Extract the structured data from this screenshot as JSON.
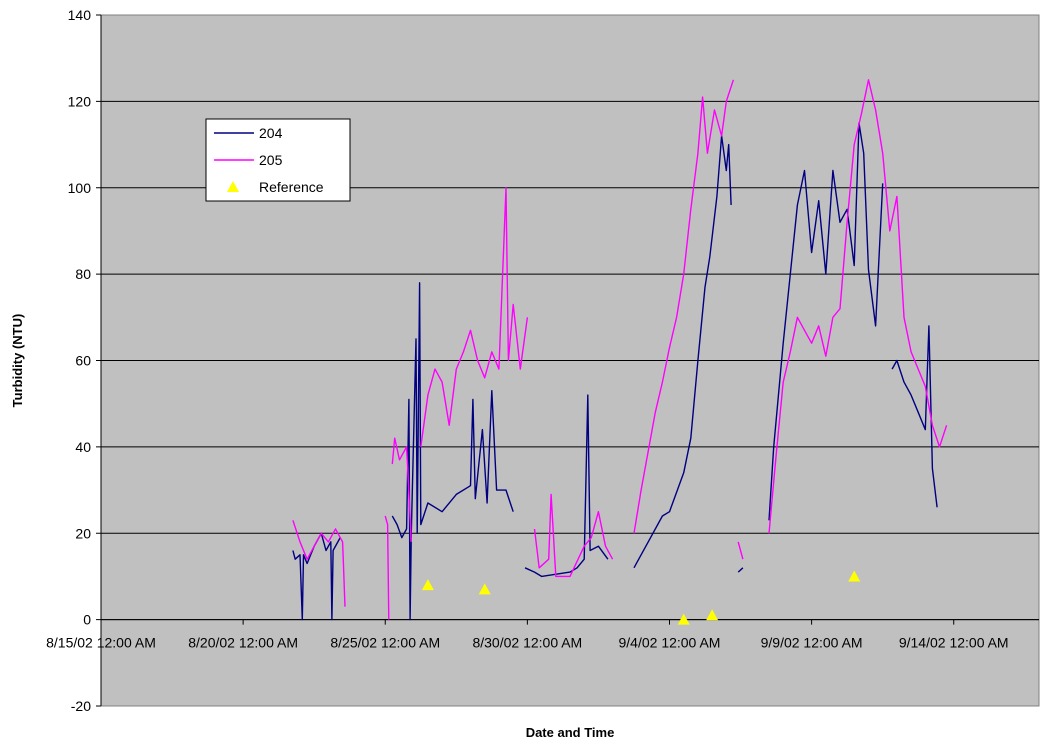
{
  "chart_data": {
    "type": "line",
    "xlabel": "Date and Time",
    "ylabel": "Turbidity (NTU)",
    "ylim": [
      -20,
      140
    ],
    "yticks": [
      -20,
      0,
      20,
      40,
      60,
      80,
      100,
      120,
      140
    ],
    "xticks": [
      {
        "date": "2002-08-15",
        "label": "8/15/02 12:00 AM"
      },
      {
        "date": "2002-08-20",
        "label": "8/20/02 12:00 AM"
      },
      {
        "date": "2002-08-25",
        "label": "8/25/02 12:00 AM"
      },
      {
        "date": "2002-08-30",
        "label": "8/30/02 12:00 AM"
      },
      {
        "date": "2002-09-04",
        "label": "9/4/02 12:00 AM"
      },
      {
        "date": "2002-09-09",
        "label": "9/9/02 12:00 AM"
      },
      {
        "date": "2002-09-14",
        "label": "9/14/02 12:00 AM"
      }
    ],
    "xlim": [
      "2002-08-15",
      "2002-09-17"
    ],
    "grid": "horizontal",
    "plot_background": "#c0c0c0",
    "legend_position": "top-left",
    "series": [
      {
        "name": "204",
        "color": "#000080",
        "kind": "line",
        "segments": [
          [
            [
              "2002-08-21T18:00",
              16
            ],
            [
              "2002-08-21T20:00",
              14
            ],
            [
              "2002-08-22T00:00",
              15
            ],
            [
              "2002-08-22T02:00",
              0
            ],
            [
              "2002-08-22T03:00",
              15
            ],
            [
              "2002-08-22T06:00",
              13
            ],
            [
              "2002-08-22T12:00",
              17
            ],
            [
              "2002-08-22T18:00",
              20
            ],
            [
              "2002-08-22T22:00",
              16
            ],
            [
              "2002-08-23T02:00",
              18
            ],
            [
              "2002-08-23T03:00",
              0
            ],
            [
              "2002-08-23T04:00",
              16
            ],
            [
              "2002-08-23T10:00",
              19
            ]
          ],
          [
            [
              "2002-08-25T06:00",
              24
            ],
            [
              "2002-08-25T10:00",
              22
            ],
            [
              "2002-08-25T14:00",
              19
            ],
            [
              "2002-08-25T18:00",
              21
            ],
            [
              "2002-08-25T20:00",
              51
            ],
            [
              "2002-08-25T21:00",
              0
            ],
            [
              "2002-08-25T22:00",
              20
            ],
            [
              "2002-08-26T02:00",
              65
            ],
            [
              "2002-08-26T03:00",
              20
            ],
            [
              "2002-08-26T05:00",
              78
            ],
            [
              "2002-08-26T06:00",
              22
            ],
            [
              "2002-08-26T12:00",
              27
            ],
            [
              "2002-08-27T00:00",
              25
            ],
            [
              "2002-08-27T12:00",
              29
            ],
            [
              "2002-08-28T00:00",
              31
            ],
            [
              "2002-08-28T02:00",
              51
            ],
            [
              "2002-08-28T04:00",
              28
            ],
            [
              "2002-08-28T10:00",
              44
            ],
            [
              "2002-08-28T14:00",
              27
            ],
            [
              "2002-08-28T18:00",
              53
            ],
            [
              "2002-08-28T22:00",
              30
            ],
            [
              "2002-08-29T06:00",
              30
            ],
            [
              "2002-08-29T12:00",
              25
            ]
          ],
          [
            [
              "2002-08-29T22:00",
              12
            ],
            [
              "2002-08-30T06:00",
              11
            ],
            [
              "2002-08-30T12:00",
              10
            ],
            [
              "2002-08-31T12:00",
              11
            ],
            [
              "2002-08-31T18:00",
              12
            ],
            [
              "2002-09-01T00:00",
              14
            ],
            [
              "2002-09-01T03:00",
              52
            ],
            [
              "2002-09-01T05:00",
              16
            ],
            [
              "2002-09-01T12:00",
              17
            ],
            [
              "2002-09-01T20:00",
              14
            ]
          ],
          [
            [
              "2002-09-02T18:00",
              12
            ],
            [
              "2002-09-03T06:00",
              18
            ],
            [
              "2002-09-03T18:00",
              24
            ],
            [
              "2002-09-04T00:00",
              25
            ],
            [
              "2002-09-04T12:00",
              34
            ],
            [
              "2002-09-04T18:00",
              42
            ],
            [
              "2002-09-05T00:00",
              60
            ],
            [
              "2002-09-05T06:00",
              77
            ],
            [
              "2002-09-05T10:00",
              84
            ],
            [
              "2002-09-05T16:00",
              98
            ],
            [
              "2002-09-05T20:00",
              112
            ],
            [
              "2002-09-06T00:00",
              104
            ],
            [
              "2002-09-06T02:00",
              110
            ],
            [
              "2002-09-06T04:00",
              96
            ]
          ],
          [
            [
              "2002-09-06T10:00",
              11
            ],
            [
              "2002-09-06T14:00",
              12
            ]
          ],
          [
            [
              "2002-09-07T12:00",
              23
            ],
            [
              "2002-09-07T16:00",
              40
            ],
            [
              "2002-09-08T00:00",
              64
            ],
            [
              "2002-09-08T06:00",
              80
            ],
            [
              "2002-09-08T12:00",
              96
            ],
            [
              "2002-09-08T18:00",
              104
            ],
            [
              "2002-09-09T00:00",
              85
            ],
            [
              "2002-09-09T06:00",
              97
            ],
            [
              "2002-09-09T12:00",
              80
            ],
            [
              "2002-09-09T18:00",
              104
            ],
            [
              "2002-09-10T00:00",
              92
            ],
            [
              "2002-09-10T06:00",
              95
            ],
            [
              "2002-09-10T12:00",
              82
            ],
            [
              "2002-09-10T16:00",
              115
            ],
            [
              "2002-09-10T20:00",
              108
            ],
            [
              "2002-09-11T00:00",
              81
            ],
            [
              "2002-09-11T06:00",
              68
            ],
            [
              "2002-09-11T12:00",
              101
            ]
          ],
          [
            [
              "2002-09-11T20:00",
              58
            ],
            [
              "2002-09-12T00:00",
              60
            ],
            [
              "2002-09-12T06:00",
              55
            ],
            [
              "2002-09-12T12:00",
              52
            ],
            [
              "2002-09-12T18:00",
              48
            ],
            [
              "2002-09-13T00:00",
              44
            ],
            [
              "2002-09-13T03:00",
              68
            ],
            [
              "2002-09-13T06:00",
              35
            ],
            [
              "2002-09-13T10:00",
              26
            ]
          ]
        ]
      },
      {
        "name": "205",
        "color": "#ff00ff",
        "kind": "line",
        "segments": [
          [
            [
              "2002-08-21T18:00",
              23
            ],
            [
              "2002-08-22T00:00",
              18
            ],
            [
              "2002-08-22T06:00",
              14
            ],
            [
              "2002-08-22T12:00",
              17
            ],
            [
              "2002-08-22T18:00",
              20
            ],
            [
              "2002-08-23T00:00",
              18
            ],
            [
              "2002-08-23T06:00",
              21
            ],
            [
              "2002-08-23T12:00",
              18
            ],
            [
              "2002-08-23T14:00",
              3
            ]
          ],
          [
            [
              "2002-08-25T00:00",
              24
            ],
            [
              "2002-08-25T02:00",
              22
            ],
            [
              "2002-08-25T03:00",
              0
            ]
          ],
          [
            [
              "2002-08-25T06:00",
              36
            ],
            [
              "2002-08-25T08:00",
              42
            ],
            [
              "2002-08-25T12:00",
              37
            ],
            [
              "2002-08-25T18:00",
              40
            ],
            [
              "2002-08-25T22:00",
              18
            ]
          ],
          [
            [
              "2002-08-26T06:00",
              40
            ],
            [
              "2002-08-26T12:00",
              52
            ],
            [
              "2002-08-26T18:00",
              58
            ],
            [
              "2002-08-27T00:00",
              55
            ],
            [
              "2002-08-27T06:00",
              45
            ],
            [
              "2002-08-27T12:00",
              58
            ],
            [
              "2002-08-27T18:00",
              62
            ],
            [
              "2002-08-28T00:00",
              67
            ],
            [
              "2002-08-28T06:00",
              60
            ],
            [
              "2002-08-28T12:00",
              56
            ],
            [
              "2002-08-28T18:00",
              62
            ],
            [
              "2002-08-29T00:00",
              58
            ],
            [
              "2002-08-29T06:00",
              100
            ],
            [
              "2002-08-29T08:00",
              60
            ],
            [
              "2002-08-29T12:00",
              73
            ],
            [
              "2002-08-29T18:00",
              58
            ],
            [
              "2002-08-30T00:00",
              70
            ]
          ],
          [
            [
              "2002-08-30T06:00",
              21
            ],
            [
              "2002-08-30T10:00",
              12
            ],
            [
              "2002-08-30T18:00",
              14
            ],
            [
              "2002-08-30T20:00",
              29
            ],
            [
              "2002-08-31T00:00",
              10
            ],
            [
              "2002-08-31T12:00",
              10
            ],
            [
              "2002-09-01T00:00",
              17
            ],
            [
              "2002-09-01T06:00",
              19
            ],
            [
              "2002-09-01T12:00",
              25
            ],
            [
              "2002-09-01T18:00",
              17
            ],
            [
              "2002-09-02T00:00",
              14
            ]
          ],
          [
            [
              "2002-09-02T18:00",
              20
            ],
            [
              "2002-09-03T00:00",
              30
            ],
            [
              "2002-09-03T06:00",
              39
            ],
            [
              "2002-09-03T12:00",
              48
            ],
            [
              "2002-09-03T18:00",
              55
            ],
            [
              "2002-09-04T00:00",
              63
            ],
            [
              "2002-09-04T06:00",
              70
            ],
            [
              "2002-09-04T12:00",
              80
            ],
            [
              "2002-09-04T18:00",
              95
            ],
            [
              "2002-09-05T00:00",
              108
            ],
            [
              "2002-09-05T04:00",
              121
            ],
            [
              "2002-09-05T08:00",
              108
            ],
            [
              "2002-09-05T14:00",
              118
            ],
            [
              "2002-09-05T20:00",
              112
            ],
            [
              "2002-09-06T00:00",
              120
            ],
            [
              "2002-09-06T06:00",
              125
            ]
          ],
          [
            [
              "2002-09-06T10:00",
              18
            ],
            [
              "2002-09-06T14:00",
              14
            ]
          ],
          [
            [
              "2002-09-07T12:00",
              20
            ],
            [
              "2002-09-07T18:00",
              38
            ],
            [
              "2002-09-08T00:00",
              55
            ],
            [
              "2002-09-08T06:00",
              62
            ],
            [
              "2002-09-08T12:00",
              70
            ],
            [
              "2002-09-08T18:00",
              67
            ],
            [
              "2002-09-09T00:00",
              64
            ],
            [
              "2002-09-09T06:00",
              68
            ],
            [
              "2002-09-09T12:00",
              61
            ],
            [
              "2002-09-09T18:00",
              70
            ],
            [
              "2002-09-10T00:00",
              72
            ],
            [
              "2002-09-10T06:00",
              92
            ],
            [
              "2002-09-10T12:00",
              110
            ],
            [
              "2002-09-10T18:00",
              117
            ],
            [
              "2002-09-11T00:00",
              125
            ],
            [
              "2002-09-11T06:00",
              118
            ],
            [
              "2002-09-11T12:00",
              108
            ],
            [
              "2002-09-11T18:00",
              90
            ],
            [
              "2002-09-12T00:00",
              98
            ],
            [
              "2002-09-12T06:00",
              70
            ],
            [
              "2002-09-12T12:00",
              62
            ],
            [
              "2002-09-12T18:00",
              58
            ],
            [
              "2002-09-13T00:00",
              54
            ],
            [
              "2002-09-13T06:00",
              45
            ],
            [
              "2002-09-13T12:00",
              40
            ],
            [
              "2002-09-13T18:00",
              45
            ]
          ]
        ]
      },
      {
        "name": "Reference",
        "color": "#ffff00",
        "kind": "marker",
        "points": [
          [
            "2002-08-26T12:00",
            8
          ],
          [
            "2002-08-28T12:00",
            7
          ],
          [
            "2002-09-04T12:00",
            0
          ],
          [
            "2002-09-05T12:00",
            1
          ],
          [
            "2002-09-10T12:00",
            10
          ]
        ]
      }
    ]
  }
}
